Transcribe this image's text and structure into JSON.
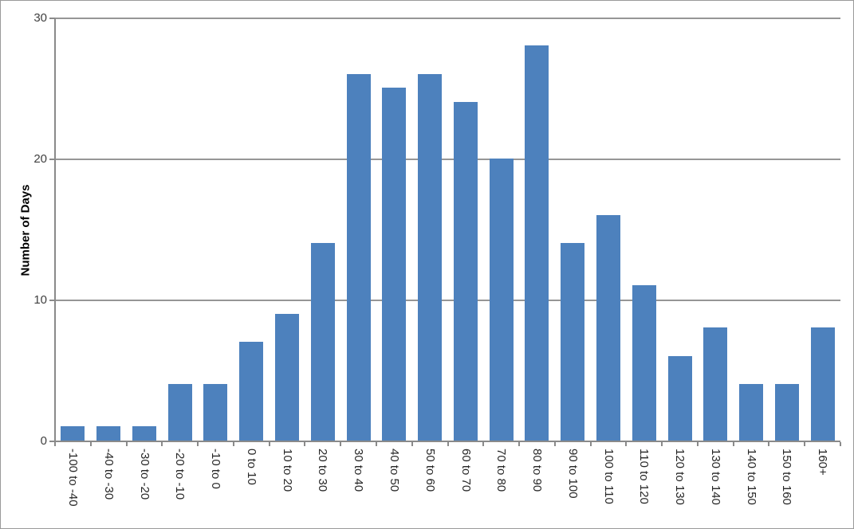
{
  "chart_data": {
    "type": "bar",
    "title": "",
    "xlabel": "",
    "ylabel": "Number of Days",
    "ylim": [
      0,
      30
    ],
    "yticks": [
      0,
      10,
      20,
      30
    ],
    "categories": [
      "-100 to -40",
      "-40 to -30",
      "-30 to -20",
      "-20 to -10",
      "-10 to 0",
      "0 to 10",
      "10 to 20",
      "20 to 30",
      "30 to 40",
      "40 to 50",
      "50 to 60",
      "60 to 70",
      "70 to 80",
      "80 to 90",
      "90 to 100",
      "100 to 110",
      "110 to 120",
      "120 to 130",
      "130 to 140",
      "140 to 150",
      "150 to 160",
      "160+"
    ],
    "values": [
      1,
      1,
      1,
      4,
      4,
      7,
      9,
      14,
      26,
      25,
      26,
      24,
      20,
      28,
      14,
      16,
      11,
      6,
      8,
      4,
      4,
      8
    ],
    "bar_color": "#4d81bd",
    "grid": true,
    "grid_color": "#969696",
    "axis_color": "#8a8a8a",
    "frame_border_color": "#9a9a9a",
    "legend": false,
    "x_label_rotation": "vertical-top-to-bottom"
  }
}
